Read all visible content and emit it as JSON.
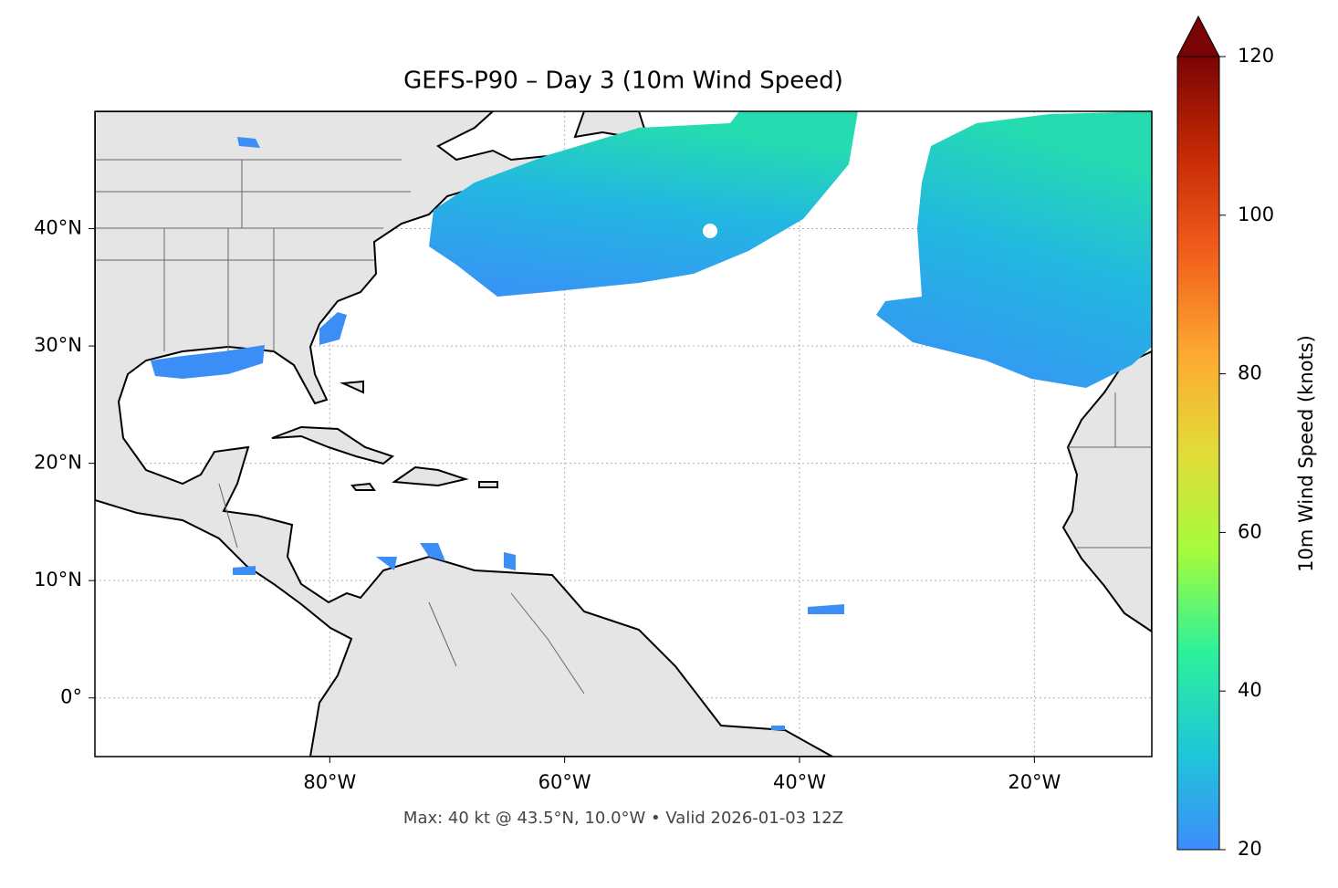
{
  "chart_data": {
    "type": "map",
    "title": "GEFS-P90 – Day 3 (10m Wind Speed)",
    "footer": "Max: 40 kt @ 43.5°N, 10.0°W • Valid 2026-01-03 12Z",
    "xlim": [
      -100,
      -10
    ],
    "ylim": [
      -5,
      50
    ],
    "xticks": [
      {
        "value": -80,
        "label": "80°W"
      },
      {
        "value": -60,
        "label": "60°W"
      },
      {
        "value": -40,
        "label": "40°W"
      },
      {
        "value": -20,
        "label": "20°W"
      }
    ],
    "yticks": [
      {
        "value": 0,
        "label": "0°"
      },
      {
        "value": 10,
        "label": "10°N"
      },
      {
        "value": 20,
        "label": "20°N"
      },
      {
        "value": 30,
        "label": "30°N"
      },
      {
        "value": 40,
        "label": "40°N"
      }
    ],
    "grid": true,
    "colorbar": {
      "label": "10m Wind Speed (knots)",
      "lim": [
        20,
        120
      ],
      "ticks": [
        20,
        40,
        60,
        80,
        100,
        120
      ],
      "colors": [
        "#3e8cfb",
        "#1ec8d6",
        "#2df19a",
        "#a4fc3c",
        "#e2dc38",
        "#fda931",
        "#f2601c",
        "#c72a05",
        "#7a0403"
      ]
    }
  }
}
